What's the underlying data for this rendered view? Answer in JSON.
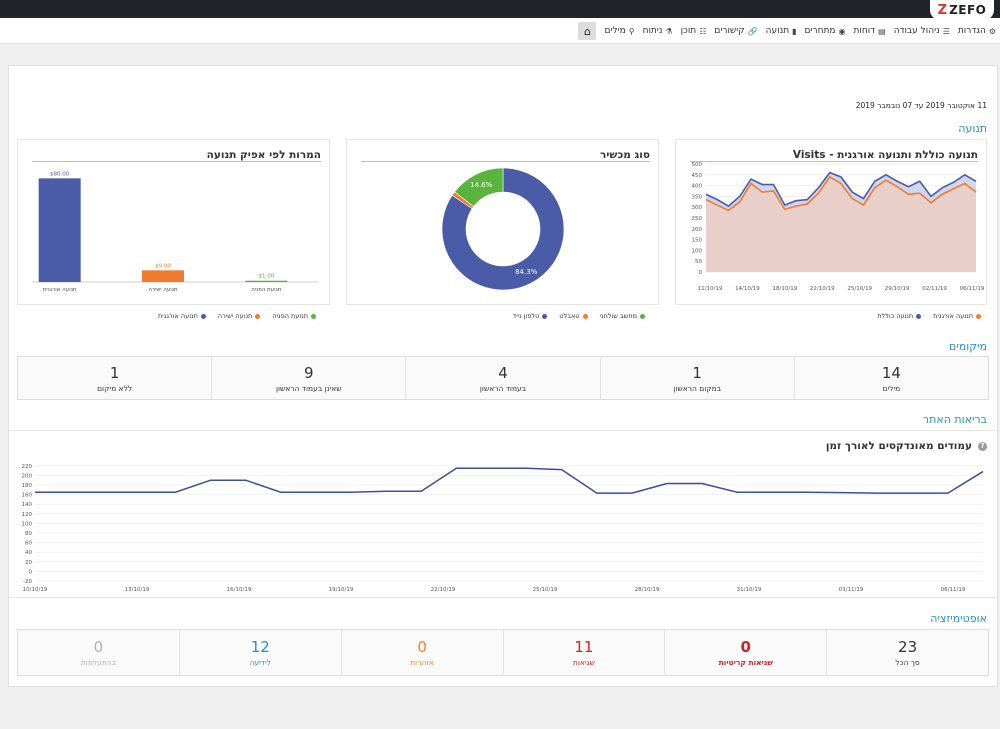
{
  "brand": {
    "logo_text": "ZEFO"
  },
  "nav": {
    "items": [
      {
        "label": "מילים",
        "icon": "key-icon",
        "glyph": "⚲"
      },
      {
        "label": "ניתוח",
        "icon": "flask-icon",
        "glyph": "⚗"
      },
      {
        "label": "תוכן",
        "icon": "sitemap-icon",
        "glyph": "☷"
      },
      {
        "label": "קישורים",
        "icon": "link-icon",
        "glyph": "🔗"
      },
      {
        "label": "תנועה",
        "icon": "bar-chart-icon",
        "glyph": "▮"
      },
      {
        "label": "מתחרים",
        "icon": "eye-icon",
        "glyph": "◉"
      },
      {
        "label": "דוחות",
        "icon": "report-chart-icon",
        "glyph": "▤"
      },
      {
        "label": "ניהול עבודה",
        "icon": "list-icon",
        "glyph": "☰"
      },
      {
        "label": "הגדרות",
        "icon": "gear-icon",
        "glyph": "⚙"
      }
    ]
  },
  "date_range": "11 אוקטובר 2019 עד 07 נובמבר 2019",
  "sections": {
    "traffic": "תנועה",
    "positions": "מיקומים",
    "site_health": "בריאות האתר",
    "optimization": "אופטימיזציה"
  },
  "cards": {
    "visits": {
      "title": "תנועה כוללת ותנועה אורגנית - Visits",
      "legend": [
        {
          "label": "תנועה כוללת",
          "color": "#4a5ba8"
        },
        {
          "label": "תנועה אורגנית",
          "color": "#f07a2e"
        }
      ]
    },
    "device": {
      "title": "סוג מכשיר",
      "legend": [
        {
          "label": "טלפון נייד",
          "color": "#4a5ba8"
        },
        {
          "label": "טאבלט",
          "color": "#f07a2e"
        },
        {
          "label": "מחשב שולחני",
          "color": "#59b43c"
        }
      ]
    },
    "conversions": {
      "title": "המרות לפי אפיק תנועה",
      "legend": [
        {
          "label": "תנועה אורגנית",
          "color": "#4a5ba8"
        },
        {
          "label": "תנועה ישירה",
          "color": "#f07a2e"
        },
        {
          "label": "תנועת הפניה",
          "color": "#59b43c"
        }
      ]
    },
    "indexed": {
      "title": "עמודים מאונדקסים לאורך זמן",
      "help_icon": "?"
    }
  },
  "chart_data": [
    {
      "type": "area",
      "id": "visits",
      "title": "תנועה כוללת ותנועה אורגנית - Visits",
      "ylim": [
        0,
        500
      ],
      "yticks": [
        "0",
        "50",
        "100",
        "150",
        "200",
        "250",
        "300",
        "350",
        "400",
        "450",
        "500"
      ],
      "xticks": [
        "11/10/19",
        "14/10/19",
        "18/10/19",
        "22/10/19",
        "25/10/19",
        "29/10/19",
        "02/11/19",
        "06/11/19"
      ],
      "series": [
        {
          "name": "תנועה כוללת",
          "color": "#4a5ba8",
          "values": [
            360,
            335,
            305,
            350,
            430,
            405,
            405,
            310,
            330,
            335,
            390,
            460,
            440,
            370,
            340,
            420,
            450,
            420,
            395,
            420,
            350,
            390,
            415,
            450,
            420
          ]
        },
        {
          "name": "תנועה אורגנית",
          "color": "#f07a2e",
          "values": [
            335,
            310,
            285,
            325,
            410,
            370,
            375,
            290,
            305,
            315,
            365,
            440,
            410,
            340,
            310,
            390,
            425,
            395,
            360,
            365,
            320,
            360,
            385,
            410,
            370
          ]
        }
      ]
    },
    {
      "type": "pie",
      "id": "device",
      "title": "סוג מכשיר",
      "labels": [
        "טלפון נייד",
        "טאבלט",
        "מחשב שולחני"
      ],
      "values": [
        84.3,
        1.1,
        14.6
      ],
      "colors": [
        "#4a5ba8",
        "#f07a2e",
        "#59b43c"
      ],
      "data_labels": [
        "84.3%",
        "",
        "14.6%"
      ]
    },
    {
      "type": "bar",
      "id": "conversions",
      "title": "המרות לפי אפיק תנועה",
      "categories": [
        "תנועה אורגנית",
        "תנועה ישירה",
        "תנועת הפניה"
      ],
      "values": [
        80,
        9,
        1
      ],
      "colors": [
        "#4a5ba8",
        "#f07a2e",
        "#59b43c"
      ],
      "data_labels": [
        "$80.00",
        "$9.00",
        "$1.00"
      ],
      "ylim": [
        0,
        88
      ]
    },
    {
      "type": "line",
      "id": "indexed",
      "title": "עמודים מאונדקסים לאורך זמן",
      "ylim": [
        -20,
        230
      ],
      "yticks": [
        "-20",
        "0",
        "20",
        "40",
        "60",
        "80",
        "100",
        "120",
        "140",
        "160",
        "180",
        "200",
        "220"
      ],
      "xticks": [
        "10/10/19",
        "13/10/19",
        "16/10/19",
        "19/10/19",
        "22/10/19",
        "25/10/19",
        "28/10/19",
        "31/10/19",
        "03/11/19",
        "06/11/19"
      ],
      "color": "#3d4f94",
      "values": [
        165,
        165,
        165,
        165,
        165,
        190,
        190,
        165,
        165,
        165,
        167,
        167,
        215,
        215,
        215,
        212,
        163,
        163,
        183,
        183,
        165,
        165,
        165,
        164,
        163,
        163,
        163,
        208
      ]
    }
  ],
  "positions": [
    {
      "value": "14",
      "label": "מילים"
    },
    {
      "value": "1",
      "label": "במקום הראשון"
    },
    {
      "value": "4",
      "label": "בעמוד הראשון"
    },
    {
      "value": "9",
      "label": "שאינן בעמוד הראשון"
    },
    {
      "value": "1",
      "label": "ללא מיקום"
    }
  ],
  "optimization": [
    {
      "value": "23",
      "label": "סך הכל",
      "color": "#333333",
      "bold": false
    },
    {
      "value": "0",
      "label": "שגיאות קריטיות",
      "color": "#d61f26",
      "bold": true
    },
    {
      "value": "11",
      "label": "שגיאות",
      "color": "#d61f26",
      "bold": false
    },
    {
      "value": "0",
      "label": "אזהרות",
      "color": "#e58a2c",
      "bold": false
    },
    {
      "value": "12",
      "label": "לידיעה",
      "color": "#2a8fc5",
      "bold": false
    },
    {
      "value": "0",
      "label": "בהתעלמות",
      "color": "#b0b0b0",
      "bold": false
    }
  ]
}
